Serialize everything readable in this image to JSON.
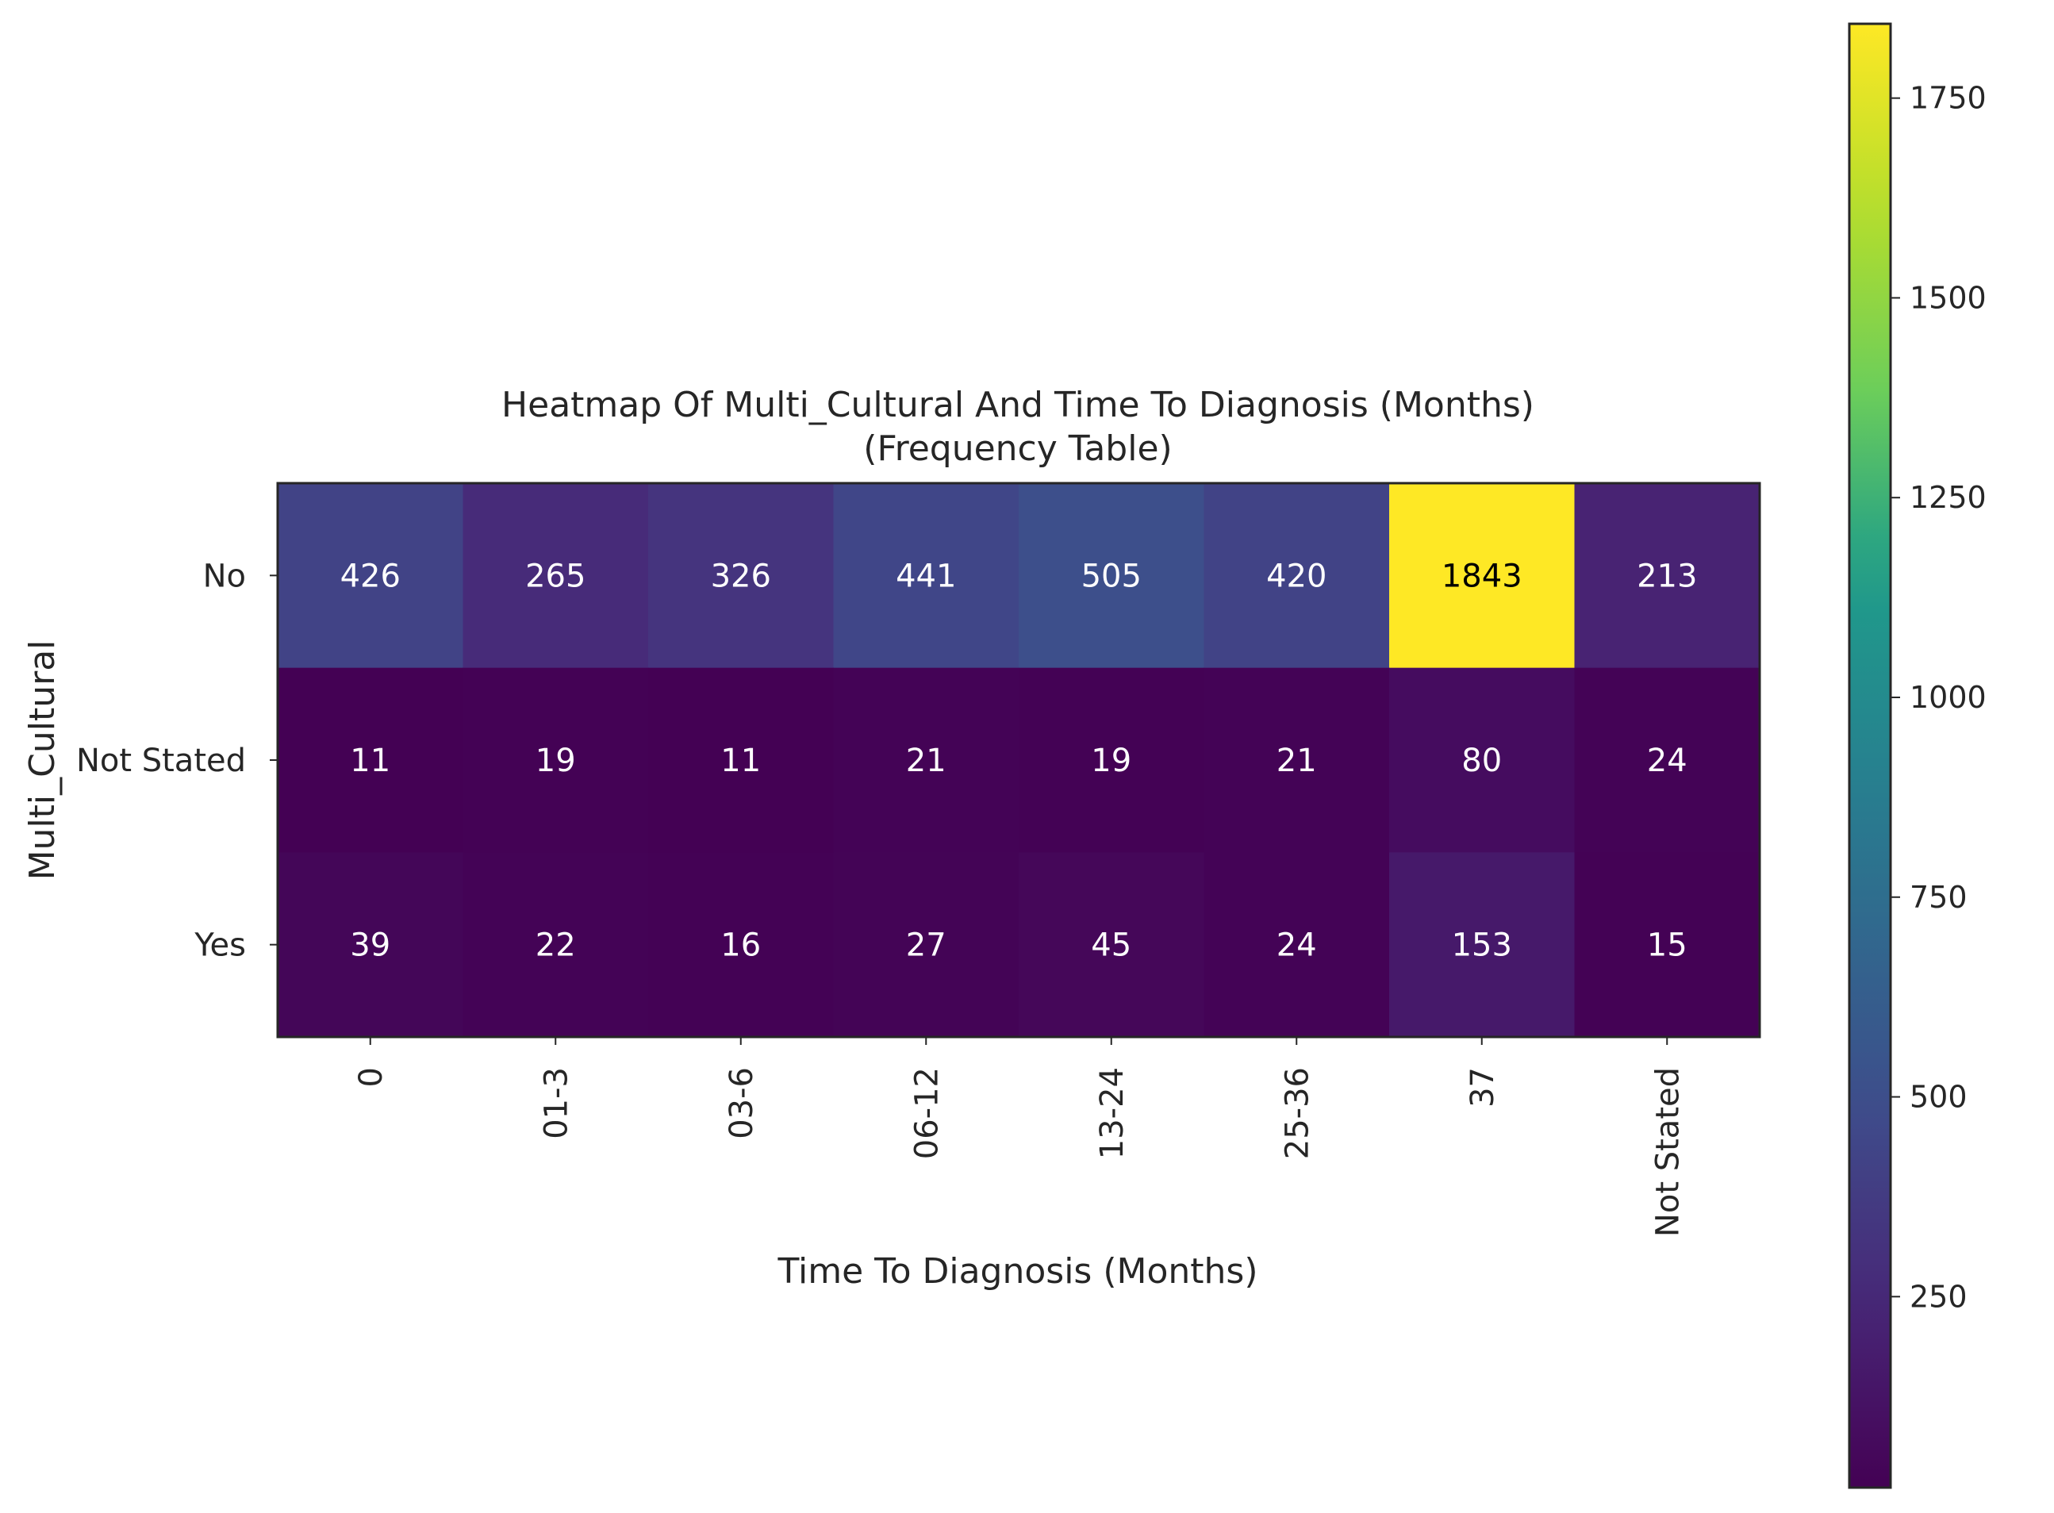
{
  "chart_data": {
    "type": "heatmap",
    "title": "Heatmap Of Multi_Cultural And Time To Diagnosis (Months)",
    "subtitle": "(Frequency Table)",
    "xlabel": "Time To Diagnosis (Months)",
    "ylabel": "Multi_Cultural",
    "x_categories": [
      "0",
      "01-3",
      "03-6",
      "06-12",
      "13-24",
      "25-36",
      "37",
      "Not Stated"
    ],
    "y_categories": [
      "No",
      "Not Stated",
      "Yes"
    ],
    "values": [
      [
        426,
        265,
        326,
        441,
        505,
        420,
        1843,
        213
      ],
      [
        11,
        19,
        11,
        21,
        19,
        21,
        80,
        24
      ],
      [
        39,
        22,
        16,
        27,
        45,
        24,
        153,
        15
      ]
    ],
    "colormap": "viridis",
    "colorbar": {
      "min": 11,
      "max": 1843,
      "ticks": [
        250,
        500,
        750,
        1000,
        1250,
        1500,
        1750
      ],
      "tick_labels": [
        "250",
        "500",
        "750",
        "1000",
        "1250",
        "1500",
        "1750"
      ]
    },
    "annotation_colors": {
      "light": "#ffffff",
      "dark": "#000000"
    }
  }
}
